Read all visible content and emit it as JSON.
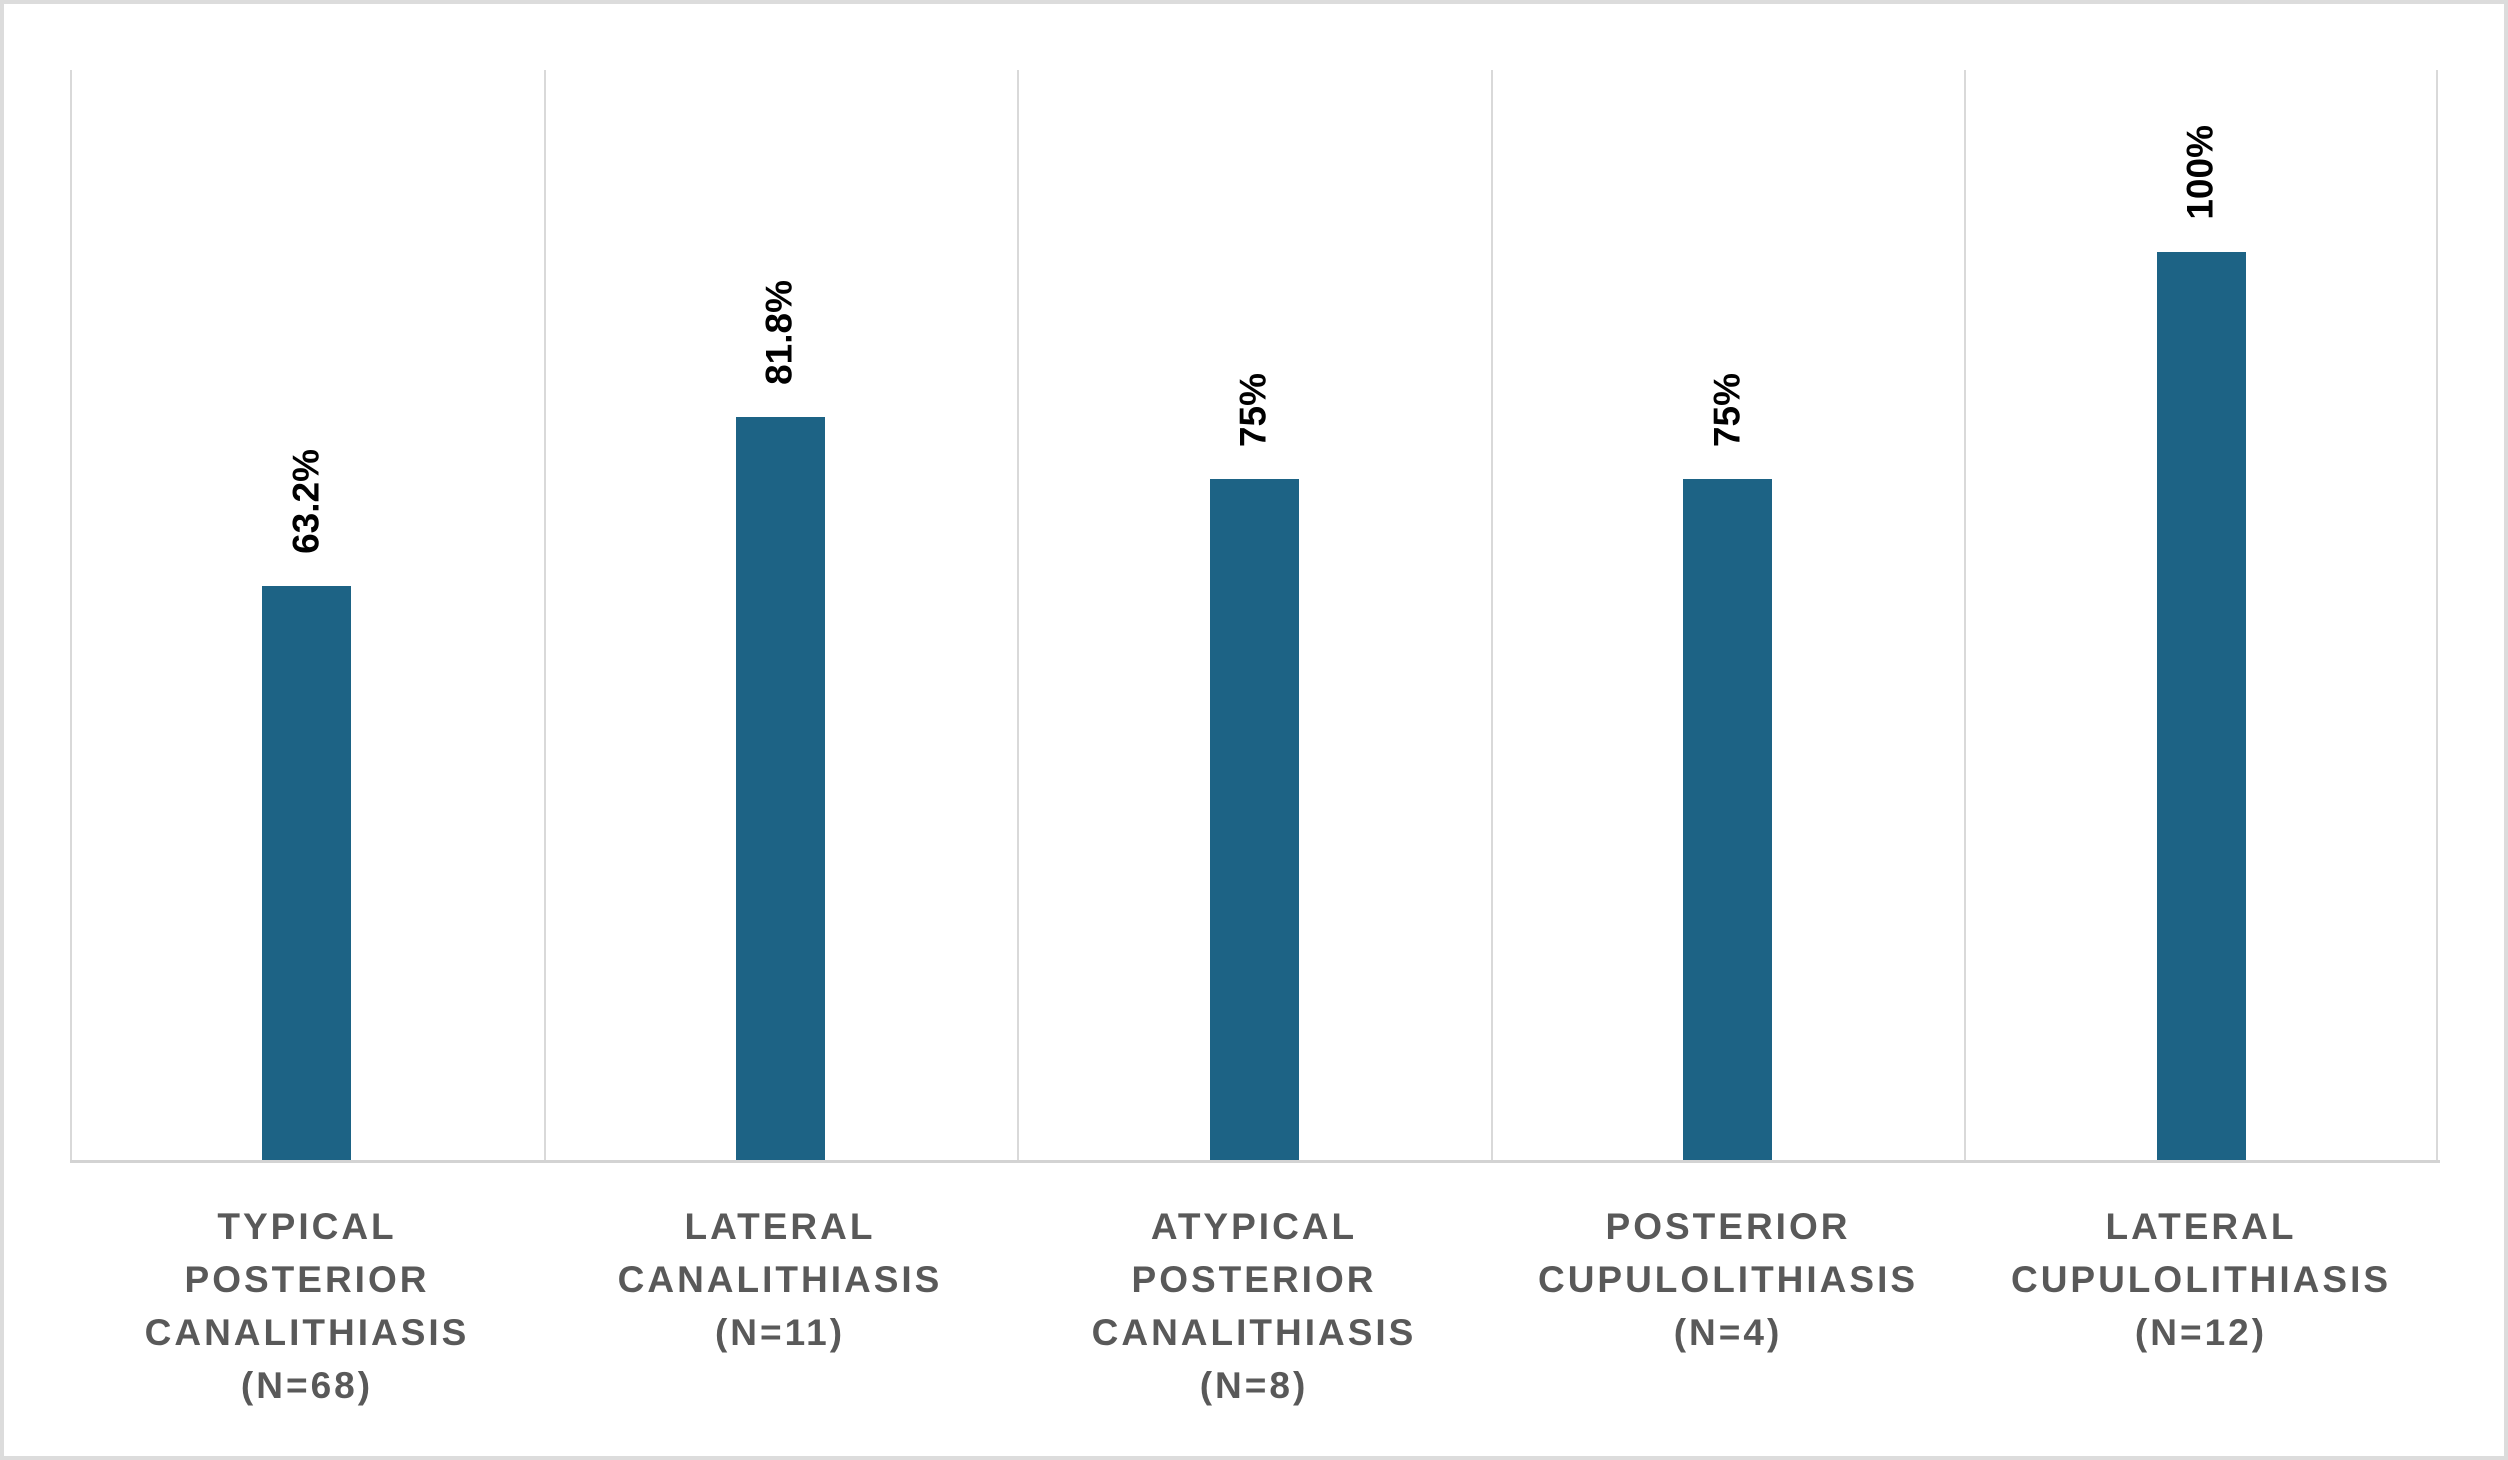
{
  "chart_data": {
    "type": "bar",
    "title": "",
    "xlabel": "",
    "ylabel": "",
    "legend": "none",
    "grid": "vertical category separators only",
    "ylim": [
      0,
      100
    ],
    "value_unit": "%",
    "value_label_orientation": "vertical",
    "categories": [
      "TYPICAL POSTERIOR CANALITHIASIS (N=68)",
      "LATERAL CANALITHIASIS (N=11)",
      "ATYPICAL POSTERIOR CANALITHIASIS (N=8)",
      "POSTERIOR CUPULOLITHIASIS (N=4)",
      "LATERAL CUPULOLITHIASIS (N=12)"
    ],
    "category_lines": [
      [
        "TYPICAL",
        "POSTERIOR",
        "CANALITHIASIS",
        "(N=68)"
      ],
      [
        "LATERAL",
        "CANALITHIASIS",
        "(N=11)"
      ],
      [
        "ATYPICAL",
        "POSTERIOR",
        "CANALITHIASIS",
        "(N=8)"
      ],
      [
        "POSTERIOR",
        "CUPULOLITHIASIS",
        "(N=4)"
      ],
      [
        "LATERAL",
        "CUPULOLITHIASIS",
        "(N=12)"
      ]
    ],
    "sample_sizes": [
      68,
      11,
      8,
      4,
      12
    ],
    "values": [
      63.2,
      81.8,
      75,
      75,
      100
    ],
    "value_labels": [
      "63.2%",
      "81.8%",
      "75%",
      "75%",
      "100%"
    ],
    "colors": {
      "bar": "#1d6385",
      "gridline": "#d9d9d9",
      "axis_line": "#d3d3d3",
      "value_label": "#000000",
      "category_label": "#595959",
      "background": "#ffffff",
      "border": "#dcdcdc"
    }
  }
}
